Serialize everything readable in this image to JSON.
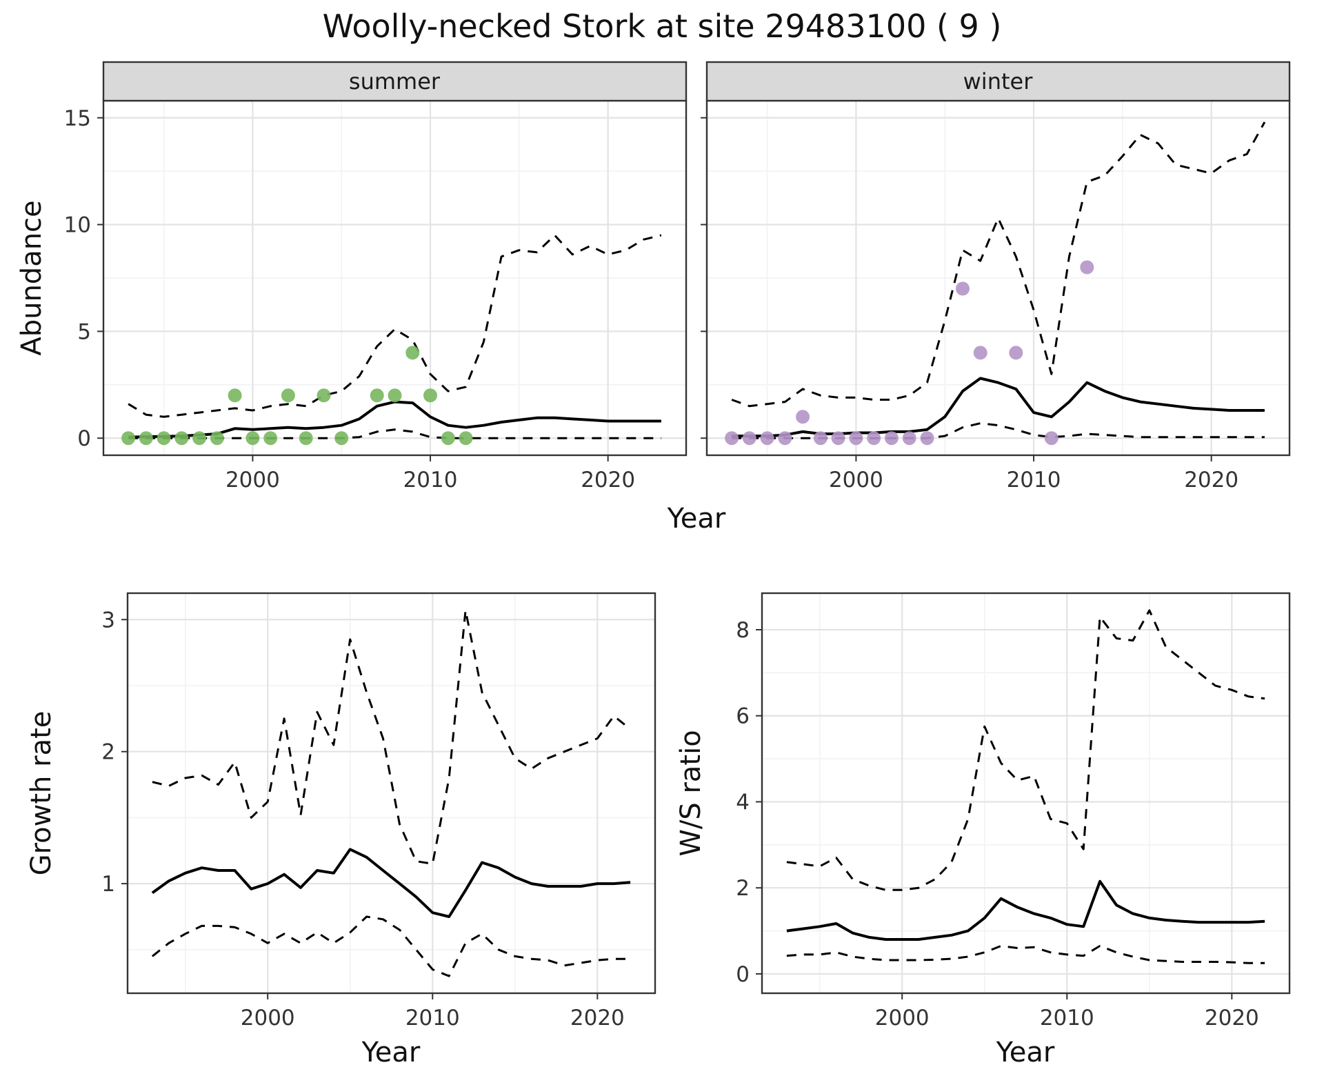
{
  "title": "Woolly-necked Stork at site 29483100 ( 9 )",
  "facets": {
    "summer": "summer",
    "winter": "winter"
  },
  "labels": {
    "abundance": "Abundance",
    "year": "Year",
    "growth_rate": "Growth rate",
    "ws_ratio": "W/S ratio"
  },
  "colors": {
    "summer_point": "#78b75e",
    "winter_point": "#b295c7",
    "line": "#000000",
    "grid_major": "#e3e3e3",
    "grid_minor": "#f2f2f2",
    "strip_bg": "#d9d9d9",
    "panel_border": "#333333",
    "tick_label": "#333333"
  },
  "chart_data": [
    {
      "id": "abundance-summer",
      "type": "line",
      "facet": "summer",
      "xlabel": "Year",
      "ylabel": "Abundance",
      "xlim": [
        1991.6,
        2024.4
      ],
      "ylim": [
        -0.8,
        15.8
      ],
      "xticks": [
        2000,
        2010,
        2020
      ],
      "yticks": [
        0,
        5,
        10,
        15
      ],
      "x": [
        1993,
        1994,
        1995,
        1996,
        1997,
        1998,
        1999,
        2000,
        2001,
        2002,
        2003,
        2004,
        2005,
        2006,
        2007,
        2008,
        2009,
        2010,
        2011,
        2012,
        2013,
        2014,
        2015,
        2016,
        2017,
        2018,
        2019,
        2020,
        2021,
        2022,
        2023
      ],
      "series": [
        {
          "name": "upper95",
          "style": "dashed",
          "values": [
            1.6,
            1.1,
            1.0,
            1.1,
            1.2,
            1.3,
            1.4,
            1.3,
            1.5,
            1.6,
            1.5,
            2.0,
            2.2,
            2.9,
            4.3,
            5.1,
            4.6,
            3.0,
            2.2,
            2.4,
            4.5,
            8.5,
            8.8,
            8.7,
            9.5,
            8.6,
            9.0,
            8.6,
            8.8,
            9.3,
            9.5
          ]
        },
        {
          "name": "lower95",
          "style": "dashed",
          "values": [
            0,
            0,
            0,
            0,
            0,
            0,
            0,
            0,
            0,
            0,
            0,
            0,
            0,
            0.05,
            0.3,
            0.4,
            0.3,
            0.05,
            0,
            0,
            0,
            0,
            0,
            0,
            0,
            0,
            0,
            0,
            0,
            0,
            0
          ]
        },
        {
          "name": "median",
          "style": "solid",
          "values": [
            0.05,
            0.07,
            0.08,
            0.1,
            0.15,
            0.2,
            0.45,
            0.4,
            0.45,
            0.5,
            0.45,
            0.5,
            0.6,
            0.9,
            1.5,
            1.7,
            1.65,
            1.0,
            0.6,
            0.5,
            0.6,
            0.75,
            0.85,
            0.95,
            0.95,
            0.9,
            0.85,
            0.8,
            0.8,
            0.8,
            0.8
          ]
        }
      ],
      "points": {
        "name": "observed-counts-summer",
        "color_key": "summer_point",
        "x": [
          1993,
          1994,
          1995,
          1996,
          1997,
          1998,
          1999,
          2000,
          2001,
          2002,
          2003,
          2004,
          2005,
          2007,
          2008,
          2009,
          2010,
          2011,
          2012
        ],
        "y": [
          0,
          0,
          0,
          0,
          0,
          0,
          2,
          0,
          0,
          2,
          0,
          2,
          0,
          2,
          2,
          4,
          2,
          0,
          0
        ]
      }
    },
    {
      "id": "abundance-winter",
      "type": "line",
      "facet": "winter",
      "xlabel": "Year",
      "ylabel": "Abundance",
      "xlim": [
        1991.6,
        2024.4
      ],
      "ylim": [
        -0.8,
        15.8
      ],
      "xticks": [
        2000,
        2010,
        2020
      ],
      "yticks": [
        0,
        5,
        10,
        15
      ],
      "x": [
        1993,
        1994,
        1995,
        1996,
        1997,
        1998,
        1999,
        2000,
        2001,
        2002,
        2003,
        2004,
        2005,
        2006,
        2007,
        2008,
        2009,
        2010,
        2011,
        2012,
        2013,
        2014,
        2015,
        2016,
        2017,
        2018,
        2019,
        2020,
        2021,
        2022,
        2023
      ],
      "series": [
        {
          "name": "upper95",
          "style": "dashed",
          "values": [
            1.8,
            1.5,
            1.6,
            1.7,
            2.3,
            2.0,
            1.9,
            1.9,
            1.8,
            1.8,
            2.0,
            2.6,
            5.5,
            8.8,
            8.3,
            10.3,
            8.5,
            6.0,
            3.0,
            8.5,
            12.0,
            12.3,
            13.2,
            14.2,
            13.8,
            12.8,
            12.6,
            12.4,
            13.0,
            13.3,
            14.8
          ]
        },
        {
          "name": "lower95",
          "style": "dashed",
          "values": [
            0,
            0,
            0,
            0,
            0,
            0,
            0,
            0,
            0,
            0,
            0,
            0,
            0.1,
            0.5,
            0.7,
            0.6,
            0.4,
            0.15,
            0.05,
            0.1,
            0.2,
            0.15,
            0.1,
            0.05,
            0.05,
            0.05,
            0.05,
            0.05,
            0.05,
            0.05,
            0.05
          ]
        },
        {
          "name": "median",
          "style": "solid",
          "values": [
            0.1,
            0.1,
            0.1,
            0.15,
            0.3,
            0.2,
            0.2,
            0.25,
            0.25,
            0.3,
            0.3,
            0.4,
            1.0,
            2.2,
            2.8,
            2.6,
            2.3,
            1.2,
            1.0,
            1.7,
            2.6,
            2.2,
            1.9,
            1.7,
            1.6,
            1.5,
            1.4,
            1.35,
            1.3,
            1.3,
            1.3
          ]
        }
      ],
      "points": {
        "name": "observed-counts-winter",
        "color_key": "winter_point",
        "x": [
          1993,
          1994,
          1995,
          1996,
          1997,
          1998,
          1999,
          2000,
          2001,
          2002,
          2003,
          2004,
          2006,
          2007,
          2009,
          2011,
          2013
        ],
        "y": [
          0,
          0,
          0,
          0,
          1,
          0,
          0,
          0,
          0,
          0,
          0,
          0,
          7,
          4,
          4,
          0,
          8
        ]
      }
    },
    {
      "id": "growth-rate",
      "type": "line",
      "xlabel": "Year",
      "ylabel": "Growth rate",
      "xlim": [
        1991.5,
        2023.5
      ],
      "ylim": [
        0.17,
        3.2
      ],
      "xticks": [
        2000,
        2010,
        2020
      ],
      "yticks": [
        1,
        2,
        3
      ],
      "x": [
        1993,
        1994,
        1995,
        1996,
        1997,
        1998,
        1999,
        2000,
        2001,
        2002,
        2003,
        2004,
        2005,
        2006,
        2007,
        2008,
        2009,
        2010,
        2011,
        2012,
        2013,
        2014,
        2015,
        2016,
        2017,
        2018,
        2019,
        2020,
        2021,
        2022
      ],
      "series": [
        {
          "name": "upper95",
          "style": "dashed",
          "values": [
            1.77,
            1.74,
            1.8,
            1.82,
            1.75,
            1.92,
            1.5,
            1.62,
            2.25,
            1.52,
            2.3,
            2.05,
            2.85,
            2.45,
            2.1,
            1.45,
            1.17,
            1.15,
            1.8,
            3.07,
            2.45,
            2.2,
            1.95,
            1.87,
            1.95,
            2.0,
            2.05,
            2.1,
            2.27,
            2.17
          ]
        },
        {
          "name": "lower95",
          "style": "dashed",
          "values": [
            0.45,
            0.55,
            0.62,
            0.68,
            0.68,
            0.67,
            0.62,
            0.55,
            0.62,
            0.55,
            0.63,
            0.55,
            0.63,
            0.75,
            0.73,
            0.65,
            0.5,
            0.35,
            0.3,
            0.55,
            0.62,
            0.5,
            0.45,
            0.43,
            0.42,
            0.38,
            0.4,
            0.42,
            0.43,
            0.43
          ]
        },
        {
          "name": "median",
          "style": "solid",
          "values": [
            0.93,
            1.02,
            1.08,
            1.12,
            1.1,
            1.1,
            0.96,
            1.0,
            1.07,
            0.97,
            1.1,
            1.08,
            1.26,
            1.2,
            1.1,
            1.0,
            0.9,
            0.78,
            0.75,
            0.95,
            1.16,
            1.12,
            1.05,
            1.0,
            0.98,
            0.98,
            0.98,
            1.0,
            1.0,
            1.01
          ]
        }
      ]
    },
    {
      "id": "ws-ratio",
      "type": "line",
      "xlabel": "Year",
      "ylabel": "W/S ratio",
      "xlim": [
        1991.5,
        2023.5
      ],
      "ylim": [
        -0.45,
        8.85
      ],
      "xticks": [
        2000,
        2010,
        2020
      ],
      "yticks": [
        0,
        2,
        4,
        6,
        8
      ],
      "x": [
        1993,
        1994,
        1995,
        1996,
        1997,
        1998,
        1999,
        2000,
        2001,
        2002,
        2003,
        2004,
        2005,
        2006,
        2007,
        2008,
        2009,
        2010,
        2011,
        2012,
        2013,
        2014,
        2015,
        2016,
        2017,
        2018,
        2019,
        2020,
        2021,
        2022
      ],
      "series": [
        {
          "name": "upper95",
          "style": "dashed",
          "values": [
            2.6,
            2.55,
            2.5,
            2.7,
            2.2,
            2.05,
            1.95,
            1.95,
            2.0,
            2.2,
            2.6,
            3.6,
            5.75,
            4.9,
            4.5,
            4.6,
            3.6,
            3.5,
            2.9,
            8.3,
            7.8,
            7.75,
            8.45,
            7.6,
            7.3,
            7.0,
            6.7,
            6.6,
            6.45,
            6.4
          ]
        },
        {
          "name": "lower95",
          "style": "dashed",
          "values": [
            0.42,
            0.45,
            0.45,
            0.5,
            0.4,
            0.35,
            0.32,
            0.32,
            0.32,
            0.33,
            0.35,
            0.4,
            0.5,
            0.65,
            0.6,
            0.62,
            0.5,
            0.45,
            0.42,
            0.65,
            0.5,
            0.4,
            0.32,
            0.3,
            0.28,
            0.28,
            0.28,
            0.27,
            0.25,
            0.25
          ]
        },
        {
          "name": "median",
          "style": "solid",
          "values": [
            1.0,
            1.05,
            1.1,
            1.17,
            0.95,
            0.85,
            0.8,
            0.8,
            0.8,
            0.85,
            0.9,
            1.0,
            1.3,
            1.75,
            1.55,
            1.4,
            1.3,
            1.15,
            1.1,
            2.15,
            1.6,
            1.4,
            1.3,
            1.25,
            1.22,
            1.2,
            1.2,
            1.2,
            1.2,
            1.22
          ]
        }
      ]
    }
  ]
}
